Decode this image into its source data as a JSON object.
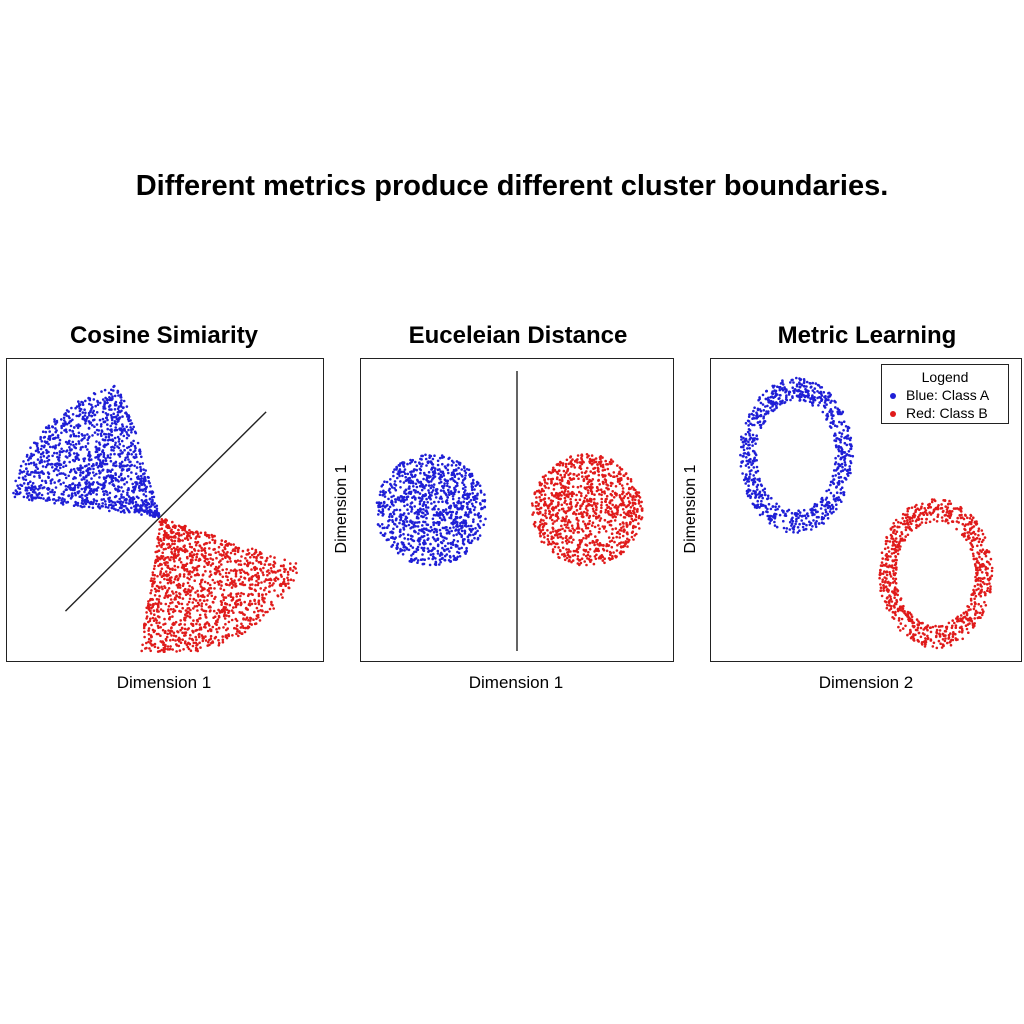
{
  "title": "Different metrics produce different cluster boundaries.",
  "colors": {
    "class_a": "#1f1fd6",
    "class_b": "#e01b1b",
    "axis": "#222222"
  },
  "chart_data": [
    {
      "type": "scatter",
      "title": "Cosine Simiarity",
      "xlabel": "Dimension 1",
      "ylabel": "",
      "boundary": "diagonal line through origin",
      "series": [
        {
          "color": "blue",
          "distribution": "wedge",
          "apex": [
            0,
            0
          ],
          "angle_deg": [
            105,
            172
          ],
          "radius": [
            0,
            1
          ],
          "n": 1300
        },
        {
          "color": "red",
          "distribution": "wedge",
          "apex": [
            0,
            0
          ],
          "angle_deg": [
            -98,
            -20
          ],
          "radius": [
            0,
            1
          ],
          "n": 1300
        }
      ]
    },
    {
      "type": "scatter",
      "title": "Euceleian Distance",
      "xlabel": "Dimension 1",
      "ylabel": "Dimension 1",
      "boundary": "vertical line",
      "series": [
        {
          "color": "blue",
          "distribution": "disk",
          "center": [
            -0.55,
            0
          ],
          "radius": 0.37,
          "n": 1000
        },
        {
          "color": "red",
          "distribution": "disk",
          "center": [
            0.45,
            0
          ],
          "radius": 0.37,
          "n": 1000
        }
      ]
    },
    {
      "type": "scatter",
      "title": "Metric Learning",
      "xlabel": "Dimension 2",
      "ylabel": "Dimension 1",
      "series": [
        {
          "name": "Blue: Class A",
          "color": "blue",
          "distribution": "ring",
          "center": [
            -0.45,
            0.36
          ],
          "radii": [
            0.31,
            0.44
          ],
          "thickness": 0.1,
          "n": 800
        },
        {
          "name": "Red: Class B",
          "color": "red",
          "distribution": "ring",
          "center": [
            0.45,
            -0.42
          ],
          "radii": [
            0.31,
            0.42
          ],
          "thickness": 0.1,
          "n": 800
        }
      ],
      "legend": {
        "title": "Logend",
        "position": "top-right"
      }
    }
  ]
}
